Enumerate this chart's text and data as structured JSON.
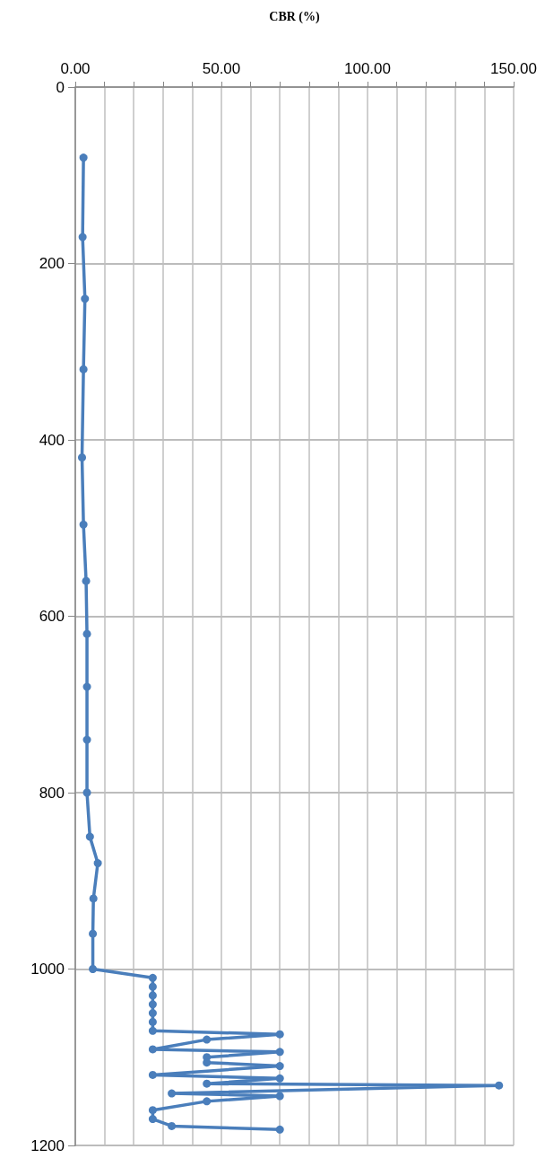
{
  "chart_data": {
    "type": "line",
    "xlabel": "CBR (%)",
    "x": [
      2.8,
      2.5,
      3.3,
      2.8,
      2.3,
      2.8,
      3.7,
      4.0,
      4.0,
      4.0,
      4.0,
      5.0,
      7.7,
      6.2,
      6.0,
      6.0,
      26.5,
      26.5,
      26.5,
      26.5,
      26.5,
      26.5,
      26.5,
      70,
      45,
      26.5,
      70,
      45,
      45,
      70,
      26.5,
      70,
      45,
      145,
      33,
      70,
      45,
      26.5,
      26.5,
      33,
      70
    ],
    "series": [
      {
        "color": "#4a7ebb",
        "values": [
          80,
          170,
          240,
          320,
          420,
          496,
          560,
          620,
          680,
          740,
          800,
          850,
          880,
          920,
          960,
          1000,
          1010,
          1020,
          1030,
          1040,
          1050,
          1060,
          1070,
          1074,
          1080,
          1091,
          1094,
          1100,
          1106,
          1110,
          1120,
          1124,
          1130,
          1132,
          1141,
          1144,
          1150,
          1160,
          1170,
          1178,
          1182
        ]
      }
    ],
    "xlim": [
      0,
      150
    ],
    "xticks": [
      {
        "value": 0,
        "label": "0.00"
      },
      {
        "value": 10,
        "label": null
      },
      {
        "value": 20,
        "label": null
      },
      {
        "value": 30,
        "label": null
      },
      {
        "value": 40,
        "label": null
      },
      {
        "value": 50,
        "label": "50.00"
      },
      {
        "value": 60,
        "label": null
      },
      {
        "value": 70,
        "label": null
      },
      {
        "value": 80,
        "label": null
      },
      {
        "value": 90,
        "label": null
      },
      {
        "value": 100,
        "label": "100.00"
      },
      {
        "value": 110,
        "label": null
      },
      {
        "value": 120,
        "label": null
      },
      {
        "value": 130,
        "label": null
      },
      {
        "value": 140,
        "label": null
      },
      {
        "value": 150,
        "label": "150.00"
      }
    ],
    "ylim": [
      1200,
      0
    ],
    "yticks": [
      0,
      200,
      400,
      600,
      800,
      1000,
      1200
    ],
    "grid": true,
    "marker": "circle",
    "line_style": "solid"
  }
}
